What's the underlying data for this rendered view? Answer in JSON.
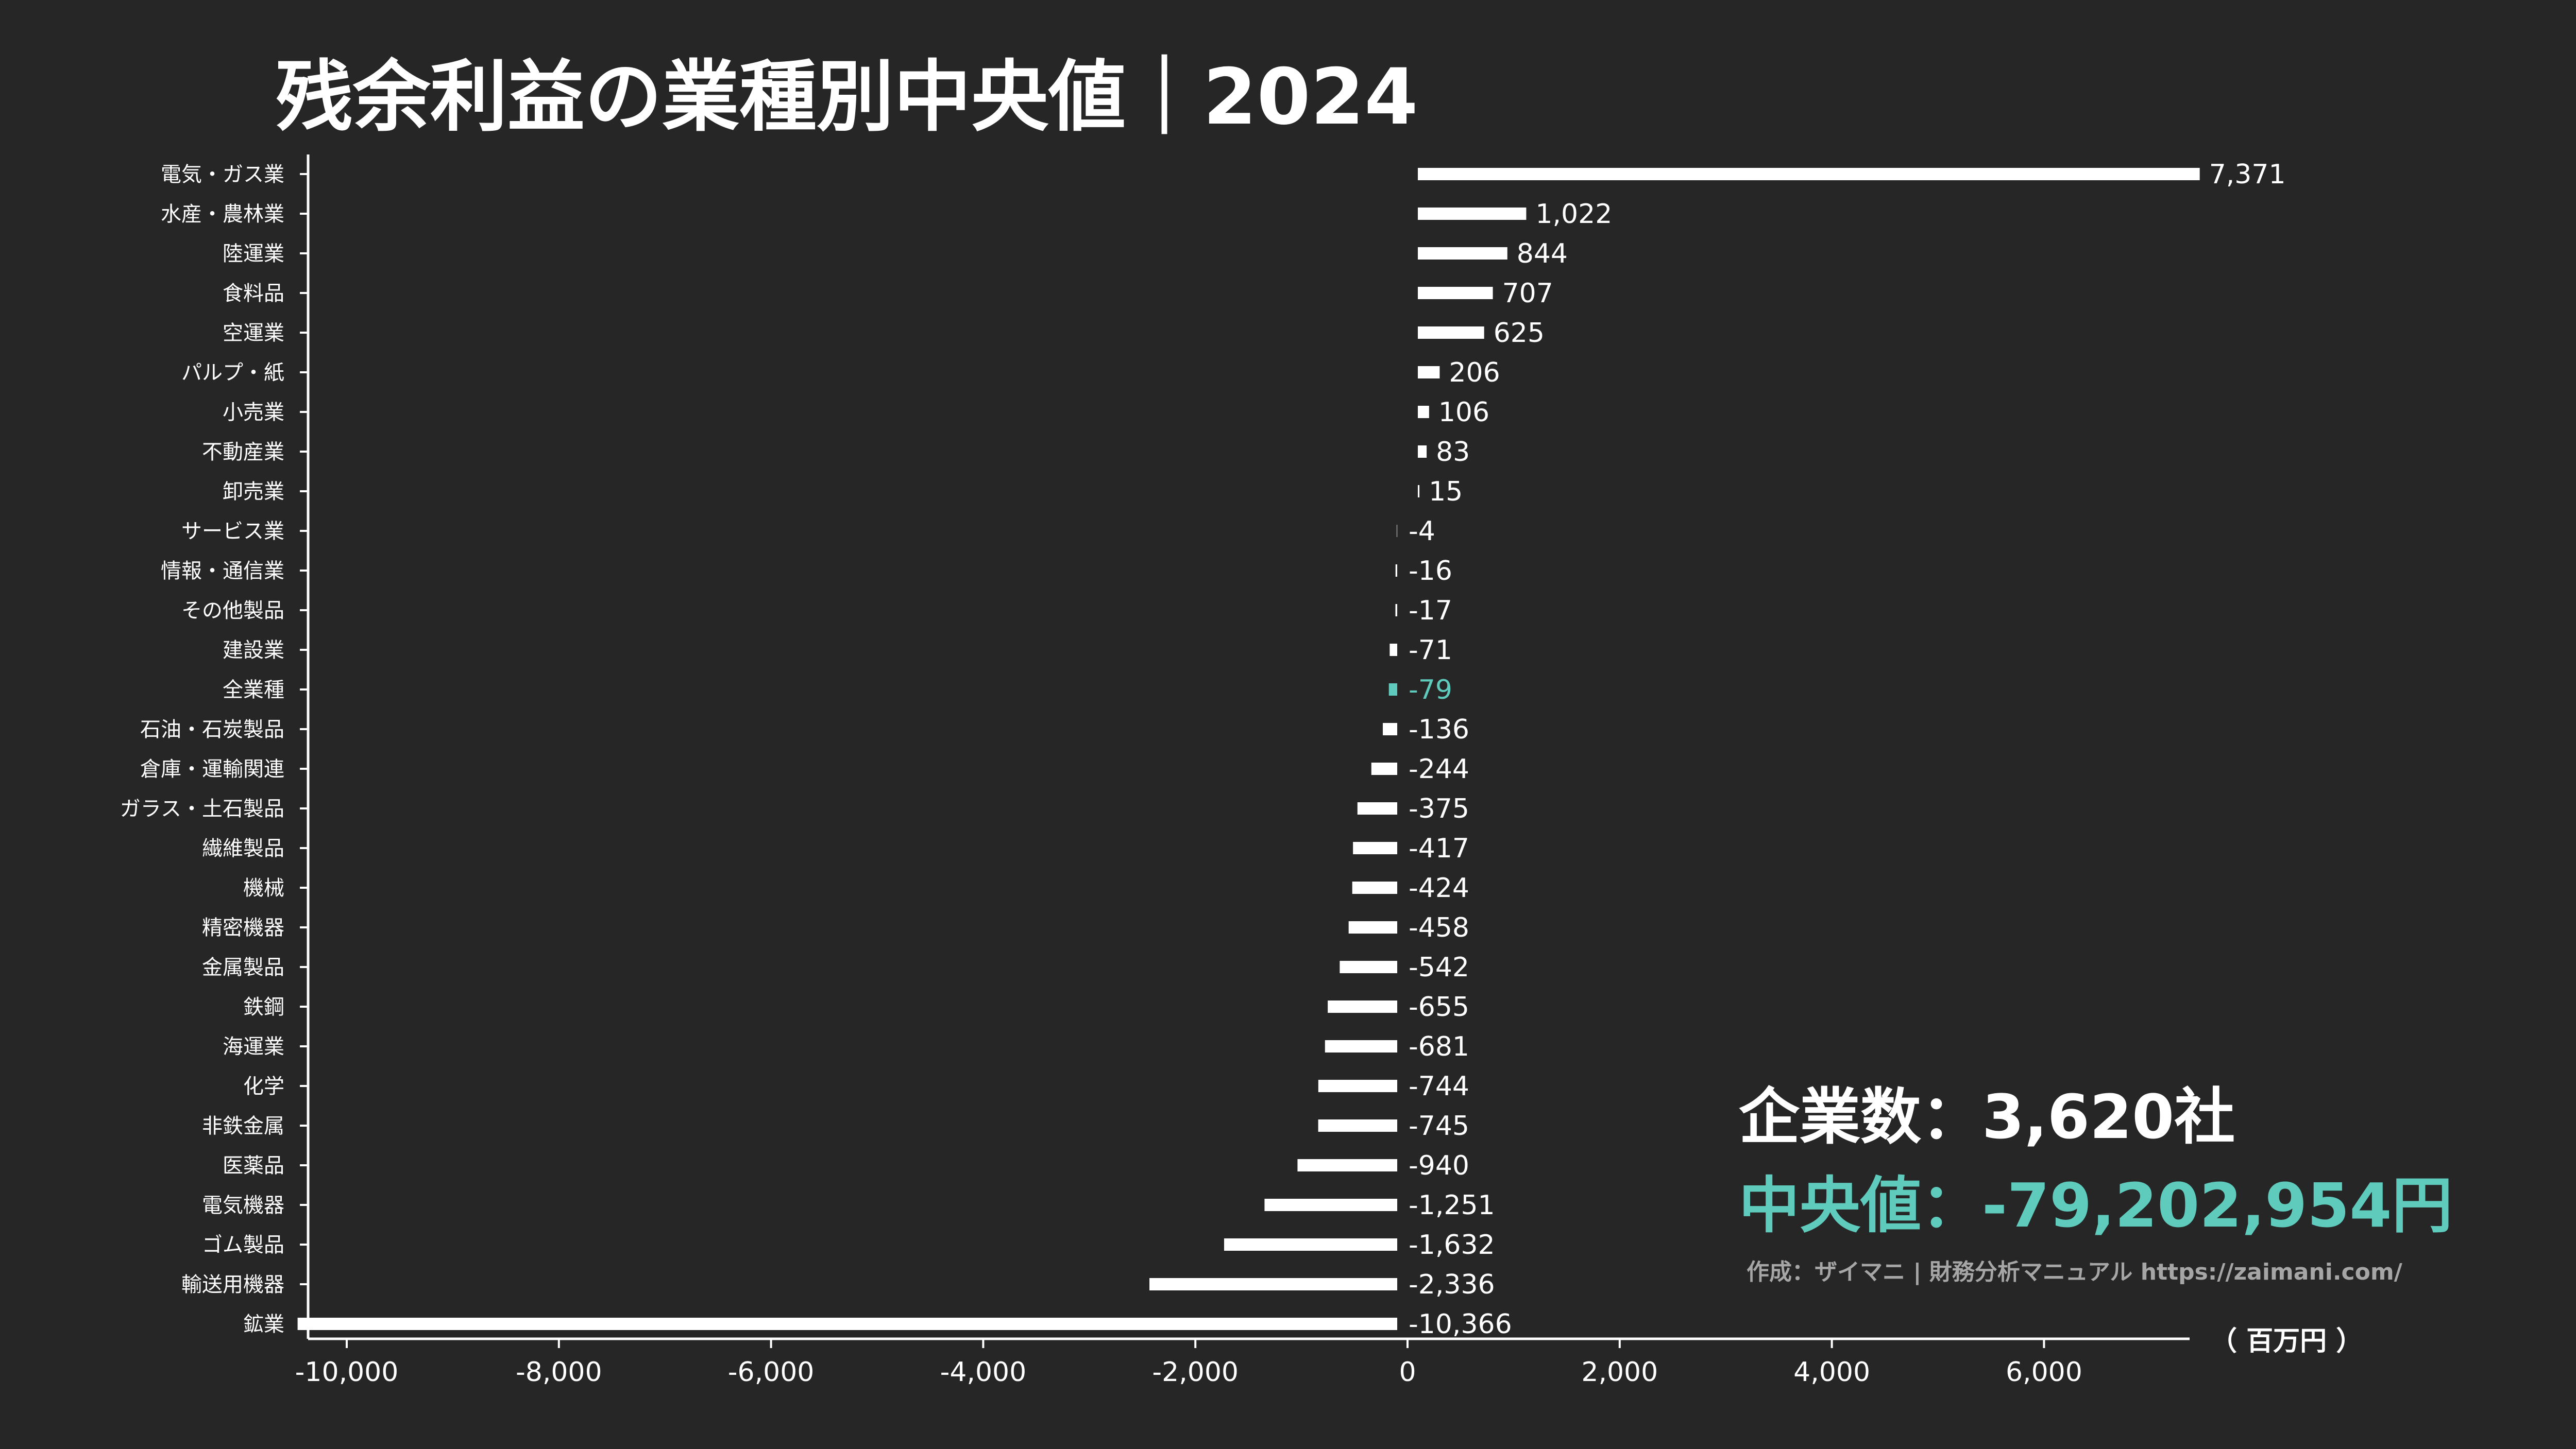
{
  "colors": {
    "background": "#262626",
    "bar": "#ffffff",
    "text": "#ffffff",
    "highlight": "#5ecbbd",
    "credit": "#a6a6a6"
  },
  "stats": {
    "companies": "企業数：3,620社",
    "median": "中央値：-79,202,954円"
  },
  "credit": "作成：ザイマニ | 財務分析マニュアル https://zaimani.com/",
  "chart_data": {
    "type": "bar",
    "orientation": "horizontal",
    "title": "残余利益の業種別中央値｜2024",
    "unit": "（ 百万円 ）",
    "xlim": [
      -10400,
      7371
    ],
    "xticks": [
      -10000,
      -8000,
      -6000,
      -4000,
      -2000,
      0,
      2000,
      4000,
      6000
    ],
    "xtick_labels": [
      "-10,000",
      "-8,000",
      "-6,000",
      "-4,000",
      "-2,000",
      "0",
      "2,000",
      "4,000",
      "6,000"
    ],
    "highlight_category": "全業種",
    "categories": [
      "電気・ガス業",
      "水産・農林業",
      "陸運業",
      "食料品",
      "空運業",
      "パルプ・紙",
      "小売業",
      "不動産業",
      "卸売業",
      "サービス業",
      "情報・通信業",
      "その他製品",
      "建設業",
      "全業種",
      "石油・石炭製品",
      "倉庫・運輸関連",
      "ガラス・土石製品",
      "繊維製品",
      "機械",
      "精密機器",
      "金属製品",
      "鉄鋼",
      "海運業",
      "化学",
      "非鉄金属",
      "医薬品",
      "電気機器",
      "ゴム製品",
      "輸送用機器",
      "鉱業"
    ],
    "values": [
      7371,
      1022,
      844,
      707,
      625,
      206,
      106,
      83,
      15,
      -4,
      -16,
      -17,
      -71,
      -79,
      -136,
      -244,
      -375,
      -417,
      -424,
      -458,
      -542,
      -655,
      -681,
      -744,
      -745,
      -940,
      -1251,
      -1632,
      -2336,
      -10366
    ],
    "value_labels": [
      "7,371",
      "1,022",
      "844",
      "707",
      "625",
      "206",
      "106",
      "83",
      "15",
      "-4",
      "-16",
      "-17",
      "-71",
      "-79",
      "-136",
      "-244",
      "-375",
      "-417",
      "-424",
      "-458",
      "-542",
      "-655",
      "-681",
      "-744",
      "-745",
      "-940",
      "-1,251",
      "-1,632",
      "-2,336",
      "-10,366"
    ]
  }
}
